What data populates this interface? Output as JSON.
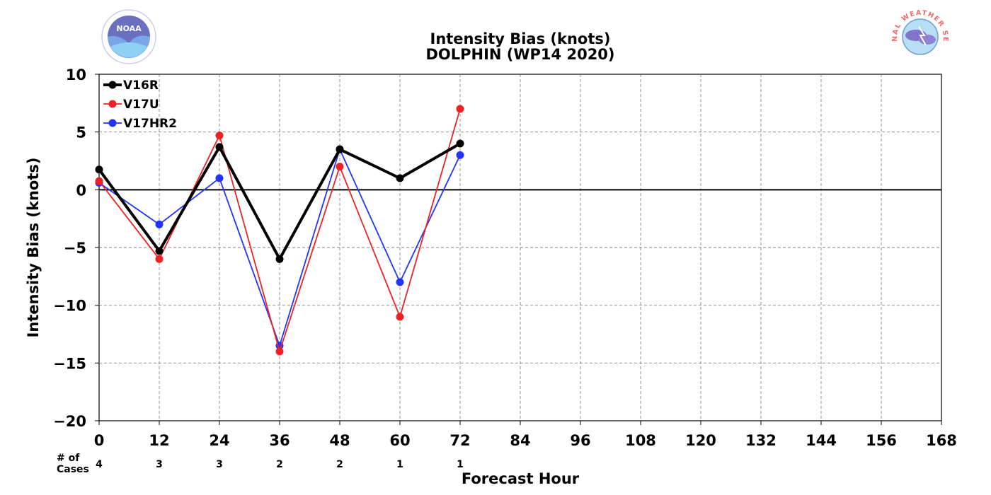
{
  "chart_data": {
    "type": "line",
    "title": "Intensity Bias (knots)",
    "subtitle": "DOLPHIN (WP14 2020)",
    "xlabel": "Forecast Hour",
    "ylabel": "Intensity Bias (knots)",
    "xlim": [
      0,
      168
    ],
    "ylim": [
      -20,
      10
    ],
    "x_ticks": [
      "0",
      "12",
      "24",
      "36",
      "48",
      "60",
      "72",
      "84",
      "96",
      "108",
      "120",
      "132",
      "144",
      "156",
      "168"
    ],
    "y_ticks": [
      "10",
      "5",
      "0",
      "−5",
      "−10",
      "−15",
      "−20"
    ],
    "grid": true,
    "legend_position": "top-left",
    "cases_label_line1": "# of",
    "cases_label_line2": "Cases",
    "cases": [
      {
        "x": 0,
        "n": "4"
      },
      {
        "x": 12,
        "n": "3"
      },
      {
        "x": 24,
        "n": "3"
      },
      {
        "x": 36,
        "n": "2"
      },
      {
        "x": 48,
        "n": "2"
      },
      {
        "x": 60,
        "n": "1"
      },
      {
        "x": 72,
        "n": "1"
      }
    ],
    "series": [
      {
        "name": "V16R",
        "color": "#000000",
        "x": [
          0,
          12,
          24,
          36,
          48,
          60,
          72
        ],
        "y": [
          1.75,
          -5.3,
          3.7,
          -6.0,
          3.5,
          1.0,
          4.0
        ]
      },
      {
        "name": "V17U",
        "color": "#ee2222",
        "x": [
          0,
          12,
          24,
          36,
          48,
          60,
          72
        ],
        "y": [
          0.75,
          -6.0,
          4.7,
          -14.0,
          2.0,
          -11.0,
          7.0
        ]
      },
      {
        "name": "V17HR2",
        "color": "#2233ff",
        "x": [
          0,
          12,
          24,
          36,
          48,
          60,
          72
        ],
        "y": [
          0.6,
          -3.0,
          1.0,
          -13.5,
          3.5,
          -8.0,
          3.0
        ]
      }
    ]
  },
  "logos": {
    "left_icon": "noaa-logo",
    "left_text": "NOAA",
    "right_icon": "nws-logo",
    "right_text": "NATIONAL WEATHER SERVICE"
  }
}
